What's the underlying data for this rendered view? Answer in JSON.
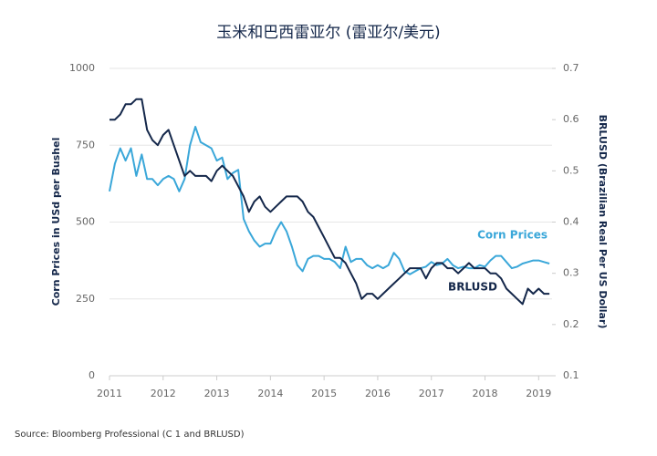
{
  "chart_data": {
    "type": "line",
    "title": "玉米和巴西雷亚尔 (雷亚尔/美元)",
    "source": "Source: Bloomberg Professional (C 1 and BRLUSD)",
    "y_label": "Corn Prices in USd per Bushel",
    "y2_label": "BRLUSD (Brazilian Real Per US Dollar)",
    "x": [
      2011.0,
      2011.1,
      2011.2,
      2011.3,
      2011.4,
      2011.5,
      2011.6,
      2011.7,
      2011.8,
      2011.9,
      2012.0,
      2012.1,
      2012.2,
      2012.3,
      2012.4,
      2012.5,
      2012.6,
      2012.7,
      2012.8,
      2012.9,
      2013.0,
      2013.1,
      2013.2,
      2013.3,
      2013.4,
      2013.5,
      2013.6,
      2013.7,
      2013.8,
      2013.9,
      2014.0,
      2014.1,
      2014.2,
      2014.3,
      2014.4,
      2014.5,
      2014.6,
      2014.7,
      2014.8,
      2014.9,
      2015.0,
      2015.1,
      2015.2,
      2015.3,
      2015.4,
      2015.5,
      2015.6,
      2015.7,
      2015.8,
      2015.9,
      2016.0,
      2016.1,
      2016.2,
      2016.3,
      2016.4,
      2016.5,
      2016.6,
      2016.7,
      2016.8,
      2016.9,
      2017.0,
      2017.1,
      2017.2,
      2017.3,
      2017.4,
      2017.5,
      2017.6,
      2017.7,
      2017.8,
      2017.9,
      2018.0,
      2018.1,
      2018.2,
      2018.3,
      2018.4,
      2018.5,
      2018.6,
      2018.7,
      2018.8,
      2018.9,
      2019.0,
      2019.1,
      2019.2
    ],
    "xlim": [
      2011,
      2019.25
    ],
    "xticks": [
      2011,
      2012,
      2013,
      2014,
      2015,
      2016,
      2017,
      2018,
      2019
    ],
    "ylim": [
      0,
      1000
    ],
    "yticks": [
      0,
      250,
      500,
      750,
      1000
    ],
    "y2lim": [
      0.1,
      0.7
    ],
    "y2ticks": [
      0.1,
      0.2,
      0.3,
      0.4,
      0.5,
      0.6,
      0.7
    ],
    "grid": true,
    "series": [
      {
        "name": "Corn Prices",
        "color": "#3aa7d9",
        "axis": "y",
        "values": [
          600,
          690,
          740,
          700,
          740,
          650,
          720,
          640,
          640,
          620,
          640,
          650,
          640,
          600,
          640,
          750,
          810,
          760,
          750,
          740,
          700,
          710,
          640,
          660,
          670,
          510,
          470,
          440,
          420,
          430,
          430,
          470,
          500,
          470,
          420,
          360,
          340,
          380,
          390,
          390,
          380,
          380,
          370,
          350,
          420,
          370,
          380,
          380,
          360,
          350,
          360,
          350,
          360,
          400,
          380,
          340,
          330,
          340,
          350,
          355,
          370,
          360,
          365,
          380,
          360,
          350,
          355,
          350,
          350,
          360,
          355,
          375,
          390,
          390,
          370,
          350,
          355,
          365,
          370,
          375,
          375,
          370,
          365
        ]
      },
      {
        "name": "BRLUSD",
        "color": "#14274a",
        "axis": "y2",
        "values": [
          0.6,
          0.6,
          0.61,
          0.63,
          0.63,
          0.64,
          0.64,
          0.58,
          0.56,
          0.55,
          0.57,
          0.58,
          0.55,
          0.52,
          0.49,
          0.5,
          0.49,
          0.49,
          0.49,
          0.48,
          0.5,
          0.51,
          0.5,
          0.49,
          0.47,
          0.45,
          0.42,
          0.44,
          0.45,
          0.43,
          0.42,
          0.43,
          0.44,
          0.45,
          0.45,
          0.45,
          0.44,
          0.42,
          0.41,
          0.39,
          0.37,
          0.35,
          0.33,
          0.33,
          0.32,
          0.3,
          0.28,
          0.25,
          0.26,
          0.26,
          0.25,
          0.26,
          0.27,
          0.28,
          0.29,
          0.3,
          0.31,
          0.31,
          0.31,
          0.29,
          0.31,
          0.32,
          0.32,
          0.31,
          0.31,
          0.3,
          0.31,
          0.32,
          0.31,
          0.31,
          0.31,
          0.3,
          0.3,
          0.29,
          0.27,
          0.26,
          0.25,
          0.24,
          0.27,
          0.26,
          0.27,
          0.26,
          0.26
        ]
      }
    ]
  }
}
